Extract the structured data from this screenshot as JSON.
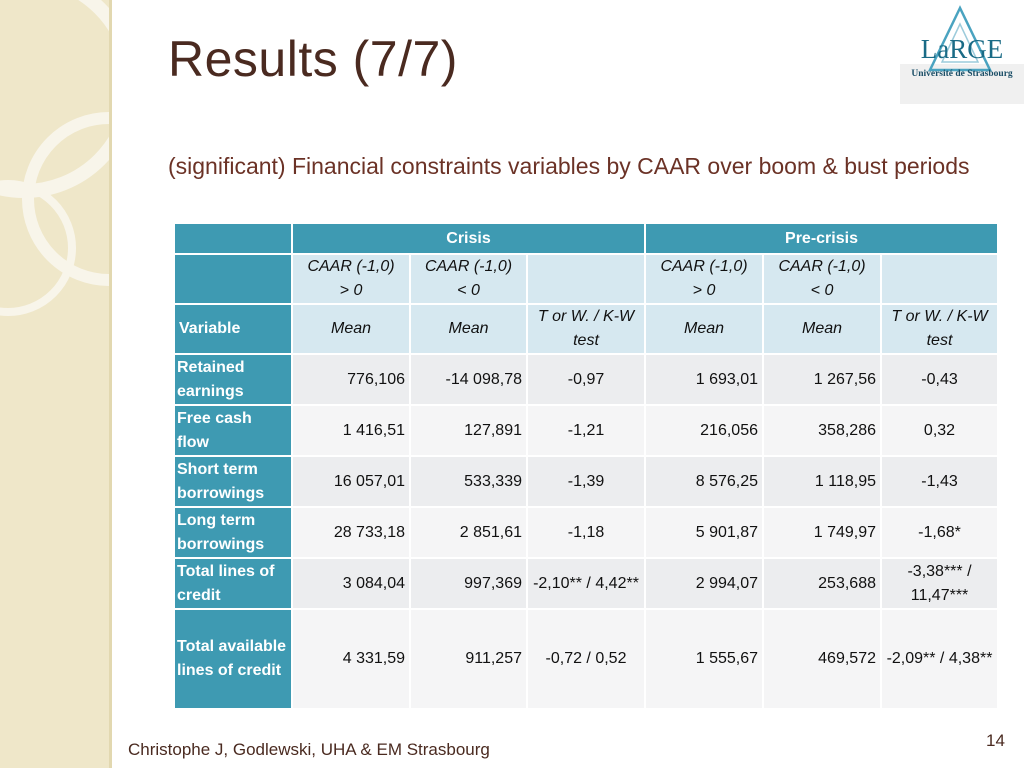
{
  "title": "Results (7/7)",
  "subtitle": "(significant) Financial constraints variables by CAAR over boom & bust periods",
  "logo": {
    "name": "LaRGE",
    "subtitle": "Université de Strasbourg"
  },
  "table": {
    "group_headers": [
      "Crisis",
      "Pre-crisis"
    ],
    "col_headers": {
      "caar_pos_1": "CAAR (-1,0)",
      "caar_pos_2": "> 0",
      "caar_neg_1": "CAAR (-1,0)",
      "caar_neg_2": "< 0"
    },
    "variable_label": "Variable",
    "mean_label": "Mean",
    "test_label_1": "T or W. / K-W",
    "test_label_2": "test",
    "rows": [
      {
        "name": "Retained earnings",
        "values": [
          "776,106",
          "-14 098,78",
          "-0,97",
          "1 693,01",
          "1 267,56",
          "-0,43"
        ]
      },
      {
        "name": "Free cash flow",
        "values": [
          "1 416,51",
          "127,891",
          "-1,21",
          "216,056",
          "358,286",
          "0,32"
        ]
      },
      {
        "name": "Short term borrowings",
        "values": [
          "16 057,01",
          "533,339",
          "-1,39",
          "8 576,25",
          "1 118,95",
          "-1,43"
        ]
      },
      {
        "name": "Long term borrowings",
        "values": [
          "28 733,18",
          "2 851,61",
          "-1,18",
          "5 901,87",
          "1 749,97",
          "-1,68*"
        ]
      },
      {
        "name": "Total lines of credit",
        "values": [
          "3 084,04",
          "997,369",
          "-2,10** / 4,42**",
          "2 994,07",
          "253,688",
          "-3,38*** / 11,47***"
        ]
      },
      {
        "name": "Total available lines of credit",
        "values": [
          "4 331,59",
          "911,257",
          "-0,72 / 0,52",
          "1 555,67",
          "469,572",
          "-2,09** / 4,38**"
        ]
      }
    ]
  },
  "footer": "Christophe J, Godlewski, UHA & EM Strasbourg",
  "page_number": "14"
}
